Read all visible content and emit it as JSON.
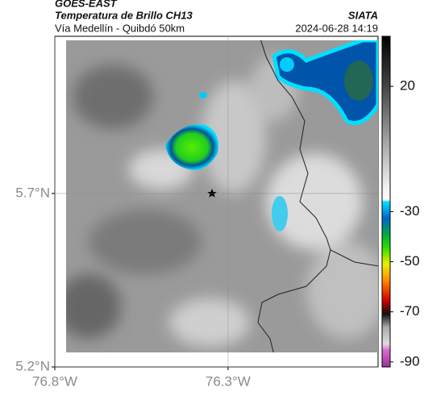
{
  "header": {
    "title": "GOES-EAST",
    "subtitle": "Temperatura de Brillo CH13",
    "location": "Vía Medellín - Quibdó 50km",
    "source": "SIATA",
    "timestamp": "2024-06-28 14:19"
  },
  "map": {
    "xlim": [
      -76.8,
      -75.867
    ],
    "ylim": [
      5.2,
      6.153
    ],
    "xticks": [
      {
        "value": -76.8,
        "label": "76.8°W"
      },
      {
        "value": -76.3,
        "label": "76.3°W"
      }
    ],
    "yticks": [
      {
        "value": 5.7,
        "label": "5.7°N"
      },
      {
        "value": 5.2,
        "label": "5.2°N"
      }
    ],
    "grid": true
  },
  "colorbar": {
    "lim": [
      -92,
      40
    ],
    "ticks": [
      20,
      -30,
      -50,
      -70,
      -90
    ]
  }
}
